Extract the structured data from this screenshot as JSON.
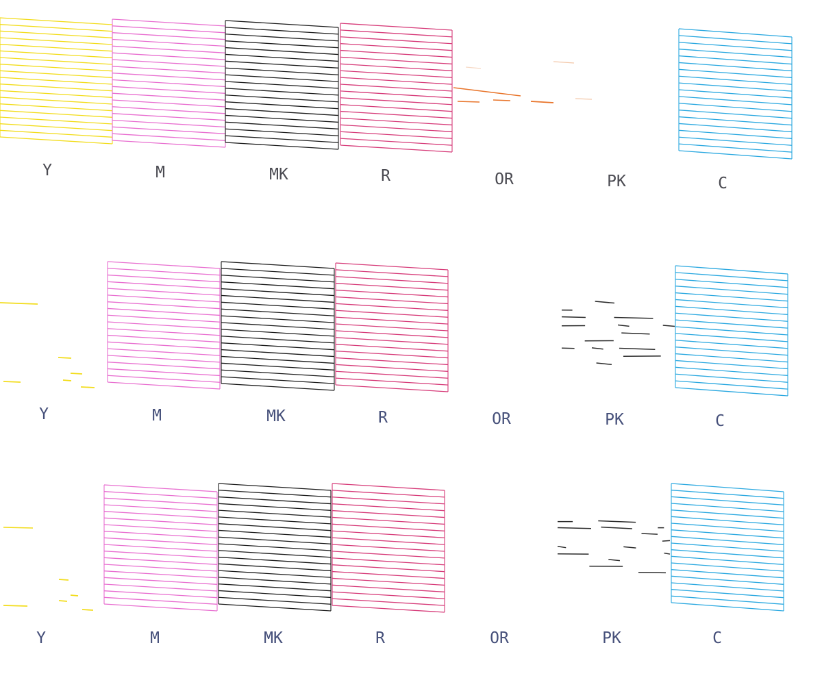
{
  "rows": [
    {
      "ink_order": [
        "Y",
        "M",
        "MK",
        "R",
        "OR",
        "PK",
        "C"
      ],
      "labels": [
        "Y",
        "M",
        "MK",
        "R",
        "OR",
        "PK",
        "C"
      ],
      "label_color": "#4b4b52",
      "nozzle_state": {
        "Y": "full",
        "M": "full",
        "MK": "full",
        "R": "full",
        "OR": "mostly-missing",
        "PK": "missing",
        "C": "full"
      }
    },
    {
      "ink_order": [
        "Y",
        "M",
        "MK",
        "R",
        "OR",
        "PK",
        "C"
      ],
      "labels": [
        "Y",
        "M",
        "MK",
        "R",
        "OR",
        "PK",
        "C"
      ],
      "label_color": "#46507a",
      "nozzle_state": {
        "Y": "mostly-missing",
        "M": "full",
        "MK": "full",
        "R": "full",
        "OR": "missing",
        "PK": "partial",
        "C": "full"
      }
    },
    {
      "ink_order": [
        "Y",
        "M",
        "MK",
        "R",
        "OR",
        "PK",
        "C"
      ],
      "labels": [
        "Y",
        "M",
        "MK",
        "R",
        "OR",
        "PK",
        "C"
      ],
      "label_color": "#46507a",
      "nozzle_state": {
        "Y": "mostly-missing",
        "M": "full",
        "MK": "full",
        "R": "full",
        "OR": "missing",
        "PK": "partial",
        "C": "full"
      }
    }
  ],
  "ink_colors": {
    "Y": "#f2dc1a",
    "M": "#e86ed0",
    "MK": "#1a1a1a",
    "R": "#d63a78",
    "OR": "#e8742a",
    "PK": "#2a2a2a",
    "C": "#2aa8e0"
  }
}
